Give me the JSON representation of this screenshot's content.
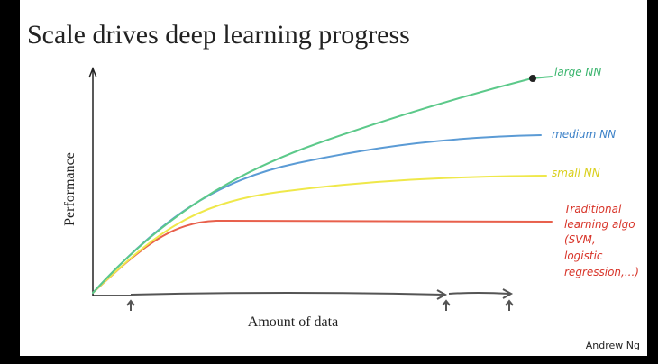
{
  "slide": {
    "title": "Scale drives deep learning progress",
    "y_axis_label": "Performance",
    "x_axis_label": "Amount of data",
    "curves": [
      {
        "label": "large NN"
      },
      {
        "label": "medium NN"
      },
      {
        "label": "small NN"
      },
      {
        "label_lines": [
          "Traditional",
          "learning algo",
          "(SVM,",
          "logistic",
          "regression,...)"
        ]
      }
    ],
    "footer": "Andrew Ng"
  }
}
